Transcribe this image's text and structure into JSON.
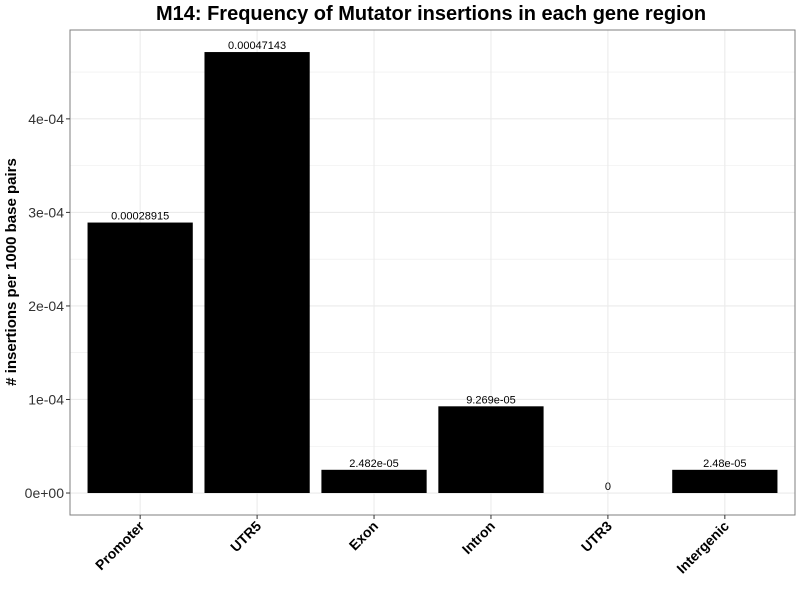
{
  "chart_data": {
    "type": "bar",
    "title": "M14: Frequency of Mutator insertions in each gene region",
    "xlabel": "",
    "ylabel": "# insertions per 1000 base pairs",
    "categories": [
      "Promoter",
      "UTR5",
      "Exon",
      "Intron",
      "UTR3",
      "Intergenic"
    ],
    "values": [
      0.00028915,
      0.00047143,
      2.482e-05,
      9.269e-05,
      0,
      2.48e-05
    ],
    "data_labels": [
      "0.00028915",
      "0.00047143",
      "2.482e-05",
      "9.269e-05",
      "0",
      "2.48e-05"
    ],
    "ylim": [
      -2.35e-05,
      0.000495
    ],
    "yticks": [
      0,
      0.0001,
      0.0002,
      0.0003,
      0.0004
    ],
    "ytick_labels": [
      "0e+00",
      "1e-04",
      "2e-04",
      "3e-04",
      "4e-04"
    ],
    "grid": true,
    "bar_color": "#000000",
    "panel_border_color": "#7f7f7f",
    "grid_color": "#ebebeb"
  }
}
